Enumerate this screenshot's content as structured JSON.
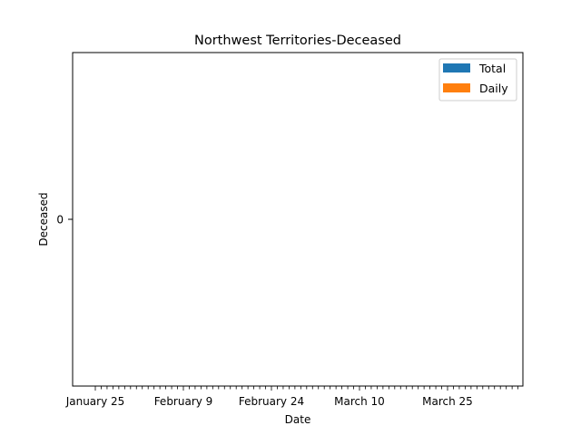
{
  "chart_data": {
    "type": "bar",
    "title": "Northwest Territories-Deceased",
    "xlabel": "Date",
    "ylabel": "Deceased",
    "x_start": "January 25",
    "x_end": "April 6",
    "xtick_labels": [
      "January 25",
      "February 9",
      "February 24",
      "March 10",
      "March 25"
    ],
    "yticks": [
      0
    ],
    "ylim": [
      -0.055,
      0.055
    ],
    "grid": false,
    "legend_position": "top-right",
    "series": [
      {
        "name": "Total",
        "color": "#1f77b4",
        "values": []
      },
      {
        "name": "Daily",
        "color": "#ff7f0e",
        "values": []
      }
    ]
  }
}
